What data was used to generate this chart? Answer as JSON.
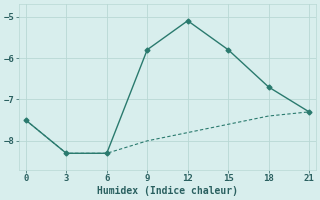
{
  "line1_x": [
    0,
    3,
    6,
    9,
    12,
    15,
    18,
    21
  ],
  "line1_y": [
    -7.5,
    -8.3,
    -8.3,
    -5.8,
    -5.1,
    -5.8,
    -6.7,
    -7.3
  ],
  "line2_x": [
    0,
    3,
    6,
    9,
    12,
    15,
    18,
    21
  ],
  "line2_y": [
    -7.5,
    -8.3,
    -8.3,
    -8.0,
    -7.8,
    -7.6,
    -7.4,
    -7.3
  ],
  "color": "#2a7a6e",
  "bg_color": "#d8eeed",
  "xlabel": "Humidex (Indice chaleur)",
  "xlim": [
    -0.5,
    21.5
  ],
  "ylim": [
    -8.7,
    -4.7
  ],
  "xticks": [
    0,
    3,
    6,
    9,
    12,
    15,
    18,
    21
  ],
  "yticks": [
    -8,
    -7,
    -6,
    -5
  ],
  "grid_color": "#b8d8d4",
  "font_color": "#2a6060",
  "marker": "D",
  "markersize": 2.5,
  "linewidth1": 1.0,
  "linewidth2": 0.8
}
